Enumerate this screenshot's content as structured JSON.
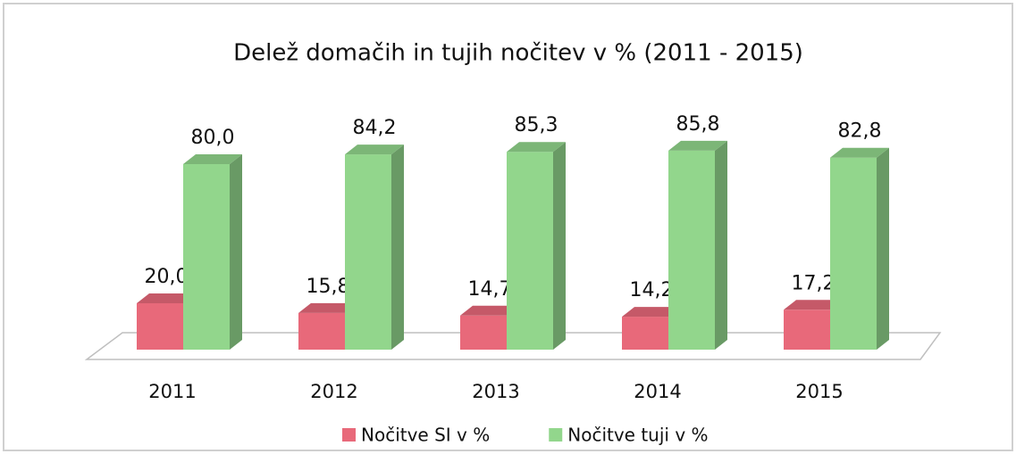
{
  "chart_data": {
    "type": "bar3d",
    "title": "Delež domačih in tujih nočitev v % (2011 - 2015)",
    "categories": [
      "2011",
      "2012",
      "2013",
      "2014",
      "2015"
    ],
    "ylim": [
      0,
      100
    ],
    "legend": "bottom",
    "series": [
      {
        "name": "Nočitve SI v %",
        "color": "#e8697a",
        "values": [
          20.0,
          15.8,
          14.7,
          14.2,
          17.2
        ],
        "value_labels": [
          "20,0",
          "15,8",
          "14,7",
          "14,2",
          "17,2"
        ]
      },
      {
        "name": "Nočitve tuji v %",
        "color": "#92d68c",
        "values": [
          80.0,
          84.2,
          85.3,
          85.8,
          82.8
        ],
        "value_labels": [
          "80,0",
          "84,2",
          "85,3",
          "85,8",
          "82,8"
        ]
      }
    ]
  }
}
